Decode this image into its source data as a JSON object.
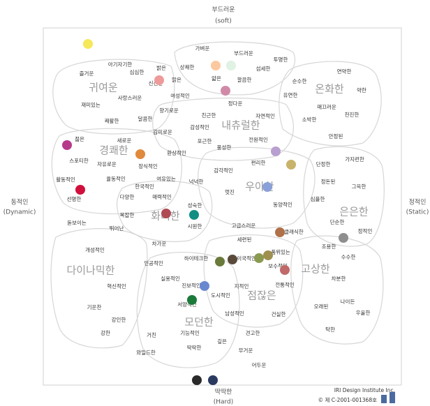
{
  "axes": {
    "top": "부드러운",
    "top_en": "(soft)",
    "bottom": "딱딱한",
    "bottom_en": "(Hard)",
    "left": "동적인",
    "left_en": "(Dynamic)",
    "right": "정적인",
    "right_en": "(Static)"
  },
  "groups": [
    "귀여운",
    "온화한",
    "내츄럴한",
    "경쾌한",
    "우아한",
    "은은한",
    "화려한",
    "다이나믹한",
    "고상한",
    "점잖은",
    "모던한"
  ],
  "words": [
    "가벼운",
    "부드러운",
    "투명한",
    "아기자기한",
    "심심한",
    "밝은",
    "상쾌한",
    "섬세한",
    "즐거운",
    "신선한",
    "맑은",
    "얇은",
    "깔끔한",
    "순수한",
    "연약한",
    "유연한",
    "약한",
    "재미있는",
    "사랑스러운",
    "여성적인",
    "정다운",
    "매끄러운",
    "천진한",
    "향기로운",
    "친근한",
    "자연적인",
    "소박한",
    "쾌활한",
    "달콤한",
    "감성적인",
    "안정된",
    "감미로운",
    "포근한",
    "전원적인",
    "젊은",
    "새로운",
    "환상적인",
    "풍성한",
    "스포티한",
    "자유로운",
    "장식적인",
    "감각적인",
    "편리한",
    "단정한",
    "가지런한",
    "활동적인",
    "율동적인",
    "한국적인",
    "여유있는",
    "넉넉한",
    "멋진",
    "정돈된",
    "그윽한",
    "선명한",
    "다양한",
    "매력적인",
    "동양적인",
    "심플한",
    "복잡한",
    "성숙한",
    "돋보이는",
    "뛰어난",
    "시원한",
    "고급스러운",
    "클래식한",
    "단순한",
    "정적인",
    "개성적인",
    "세련된",
    "조용한",
    "차가운",
    "품위있는",
    "수수한",
    "하이테크한",
    "이국적인",
    "인공적인",
    "보수적인",
    "실용적인",
    "차분한",
    "혁신적인",
    "진보적인",
    "전통적인",
    "지적인",
    "도시적인",
    "기운찬",
    "서양적인",
    "나이든",
    "남성적인",
    "오래된",
    "우울한",
    "강인한",
    "건실한",
    "기능적인",
    "견고한",
    "강한",
    "거친",
    "탁한",
    "깊은",
    "딱딱한",
    "무거운",
    "와일드한",
    "어두운"
  ],
  "dots": [
    "#f5e85a",
    "#fcc8a0",
    "#dff2e3",
    "#ef9a9a",
    "#d08aa8",
    "#b53a8a",
    "#e08a3e",
    "#b89fd0",
    "#c8b36a",
    "#8aa0d8",
    "#d0103c",
    "#b04a55",
    "#108e82",
    "#b07048",
    "#8e8e8e",
    "#6a7a3a",
    "#5a4a3a",
    "#8a9a50",
    "#a09050",
    "#c06a6a",
    "#6a88d0",
    "#1a7a3a",
    "#2a2a2a",
    "#2a3a60"
  ],
  "credit": [
    "IRI Design Institute Inc.",
    "© 제 C-2001-001368호"
  ]
}
